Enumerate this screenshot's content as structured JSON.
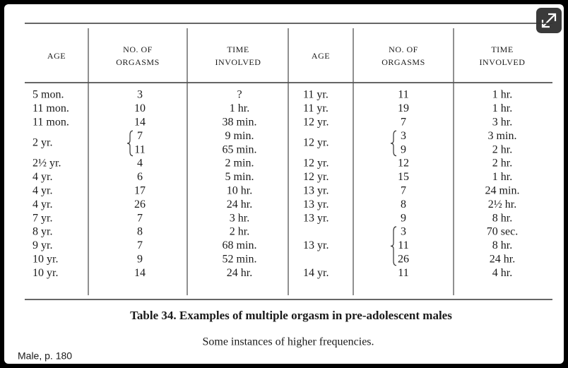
{
  "table": {
    "headers": [
      "AGE",
      [
        "NO. OF",
        "ORGASMS"
      ],
      [
        "TIME",
        "INVOLVED"
      ],
      "AGE",
      [
        "NO. OF",
        "ORGASMS"
      ],
      [
        "TIME",
        "INVOLVED"
      ]
    ],
    "left_rows": [
      {
        "age": "5 mon.",
        "counts": [
          3
        ],
        "times": [
          "?"
        ]
      },
      {
        "age": "11 mon.",
        "counts": [
          10
        ],
        "times": [
          "1 hr."
        ]
      },
      {
        "age": "11 mon.",
        "counts": [
          14
        ],
        "times": [
          "38 min."
        ]
      },
      {
        "age": "2 yr.",
        "counts": [
          7,
          11
        ],
        "times": [
          "9 min.",
          "65 min."
        ]
      },
      {
        "age": "2½ yr.",
        "counts": [
          4
        ],
        "times": [
          "2 min."
        ]
      },
      {
        "age": "4 yr.",
        "counts": [
          6
        ],
        "times": [
          "5 min."
        ]
      },
      {
        "age": "4 yr.",
        "counts": [
          17
        ],
        "times": [
          "10 hr."
        ]
      },
      {
        "age": "4 yr.",
        "counts": [
          26
        ],
        "times": [
          "24 hr."
        ]
      },
      {
        "age": "7 yr.",
        "counts": [
          7
        ],
        "times": [
          "3 hr."
        ]
      },
      {
        "age": "8 yr.",
        "counts": [
          8
        ],
        "times": [
          "2 hr."
        ]
      },
      {
        "age": "9 yr.",
        "counts": [
          7
        ],
        "times": [
          "68 min."
        ]
      },
      {
        "age": "10 yr.",
        "counts": [
          9
        ],
        "times": [
          "52 min."
        ]
      },
      {
        "age": "10 yr.",
        "counts": [
          14
        ],
        "times": [
          "24 hr."
        ]
      }
    ],
    "right_rows": [
      {
        "age": "11 yr.",
        "counts": [
          11
        ],
        "times": [
          "1 hr."
        ]
      },
      {
        "age": "11 yr.",
        "counts": [
          19
        ],
        "times": [
          "1 hr."
        ]
      },
      {
        "age": "12 yr.",
        "counts": [
          7
        ],
        "times": [
          "3 hr."
        ]
      },
      {
        "age": "12 yr.",
        "counts": [
          3,
          9
        ],
        "times": [
          "3 min.",
          "2 hr."
        ]
      },
      {
        "age": "12 yr.",
        "counts": [
          12
        ],
        "times": [
          "2 hr."
        ]
      },
      {
        "age": "12 yr.",
        "counts": [
          15
        ],
        "times": [
          "1 hr."
        ]
      },
      {
        "age": "13 yr.",
        "counts": [
          7
        ],
        "times": [
          "24 min."
        ]
      },
      {
        "age": "13 yr.",
        "counts": [
          8
        ],
        "times": [
          "2½ hr."
        ]
      },
      {
        "age": "13 yr.",
        "counts": [
          9
        ],
        "times": [
          "8 hr."
        ]
      },
      {
        "age": "13 yr.",
        "counts": [
          3,
          11,
          26
        ],
        "times": [
          "70 sec.",
          "8 hr.",
          "24 hr."
        ]
      },
      {
        "age": "14 yr.",
        "counts": [
          11
        ],
        "times": [
          "4 hr."
        ]
      }
    ]
  },
  "caption": "Table 34. Examples of multiple orgasm in pre-adolescent males",
  "subcaption": "Some instances of higher frequencies.",
  "source": "Male, p. 180"
}
